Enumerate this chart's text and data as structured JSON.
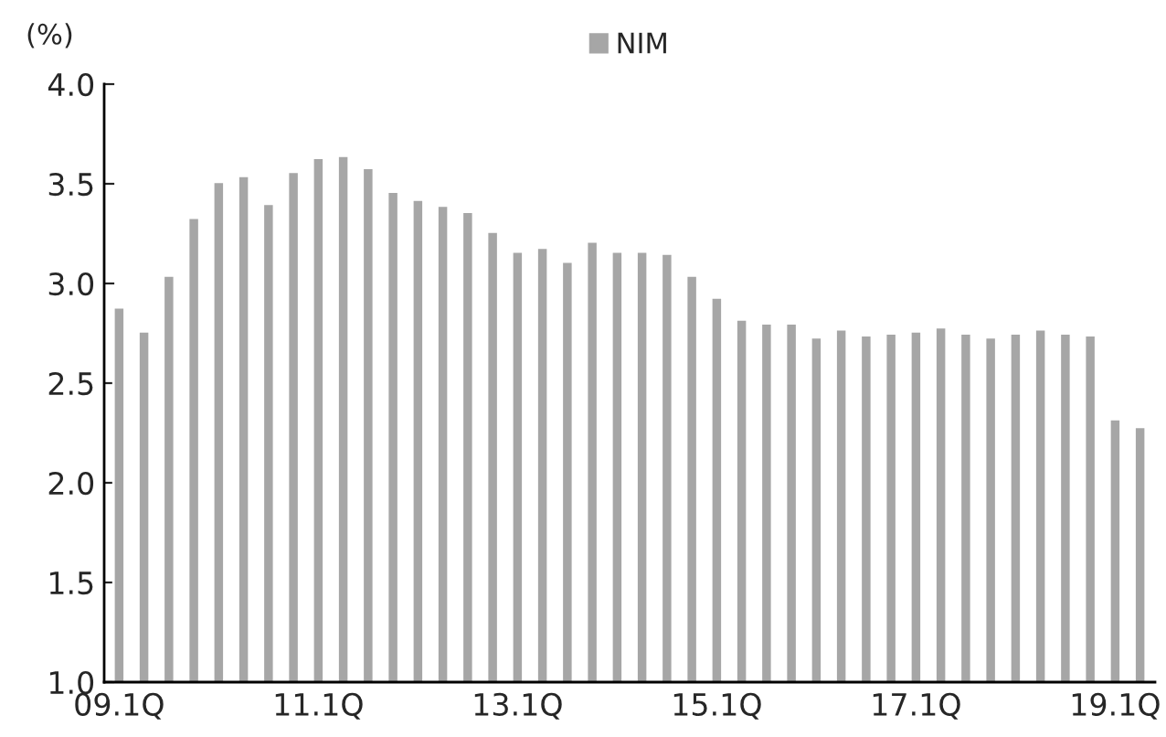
{
  "chart_data": {
    "type": "bar",
    "ylabel": "(%)",
    "categories": [
      "09.1Q",
      null,
      null,
      null,
      null,
      null,
      null,
      null,
      "11.1Q",
      null,
      null,
      null,
      null,
      null,
      null,
      null,
      "13.1Q",
      null,
      null,
      null,
      null,
      null,
      null,
      null,
      "15.1Q",
      null,
      null,
      null,
      null,
      null,
      null,
      null,
      "17.1Q",
      null,
      null,
      null,
      null,
      null,
      null,
      null,
      "19.1Q",
      null
    ],
    "series": [
      {
        "name": "NIM",
        "color": "#a6a6a6",
        "values": [
          2.88,
          2.76,
          3.04,
          3.33,
          3.51,
          3.54,
          3.4,
          3.56,
          3.63,
          3.64,
          3.58,
          3.46,
          3.42,
          3.39,
          3.36,
          3.26,
          3.16,
          3.18,
          3.11,
          3.21,
          3.16,
          3.16,
          3.15,
          3.04,
          2.93,
          2.82,
          2.8,
          2.8,
          2.73,
          2.77,
          2.74,
          2.75,
          2.76,
          2.78,
          2.75,
          2.73,
          2.75,
          2.77,
          2.75,
          2.74,
          2.32,
          2.28
        ]
      }
    ],
    "ylim": [
      1.0,
      4.0
    ],
    "yticks": [
      {
        "value": 1.0,
        "label": "1.0"
      },
      {
        "value": 1.5,
        "label": "1.5"
      },
      {
        "value": 2.0,
        "label": "2.0"
      },
      {
        "value": 2.5,
        "label": "2.5"
      },
      {
        "value": 3.0,
        "label": "3.0"
      },
      {
        "value": 3.5,
        "label": "3.5"
      },
      {
        "value": 4.0,
        "label": "4.0"
      }
    ],
    "legend": "top",
    "grid": false
  }
}
